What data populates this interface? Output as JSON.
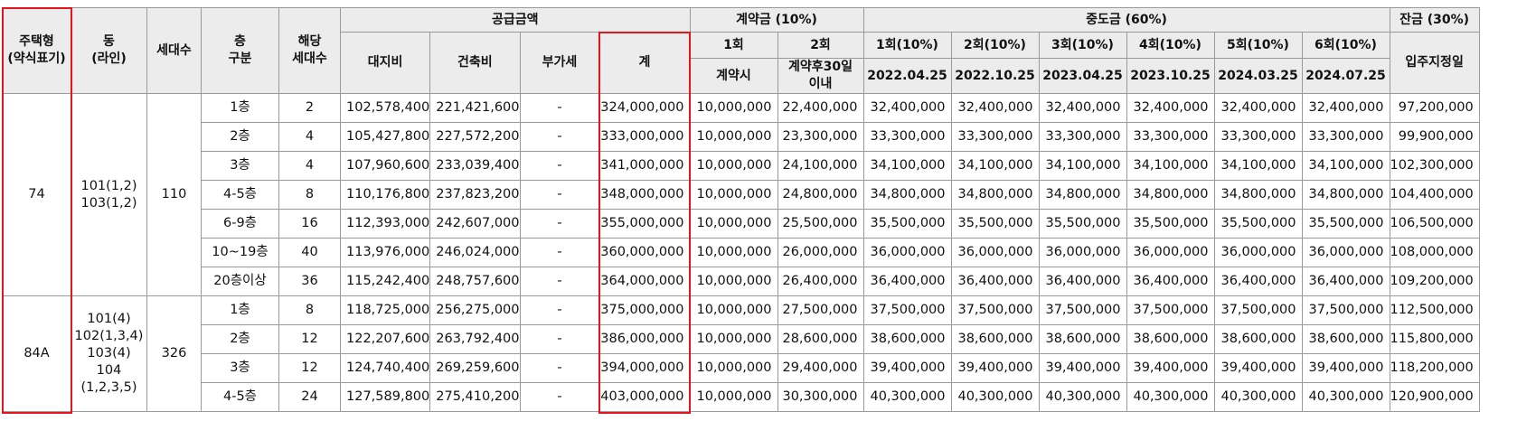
{
  "headers": {
    "type": "주택형\n(약식표기)",
    "dong": "동\n(라인)",
    "households": "세대수",
    "floor": "층\n구분",
    "floor_households": "해당\n세대수",
    "supply_price": "공급금액",
    "land": "대지비",
    "building": "건축비",
    "vat": "부가세",
    "total": "계",
    "contract": "계약금 (10%)",
    "contract_1": "1회",
    "contract_1_sub": "계약시",
    "contract_2": "2회",
    "contract_2_sub": "계약후30일\n이내",
    "middle": "중도금 (60%)",
    "installments": [
      {
        "label": "1회(10%)",
        "date": "2022.04.25"
      },
      {
        "label": "2회(10%)",
        "date": "2022.10.25"
      },
      {
        "label": "3회(10%)",
        "date": "2023.04.25"
      },
      {
        "label": "4회(10%)",
        "date": "2023.10.25"
      },
      {
        "label": "5회(10%)",
        "date": "2024.03.25"
      },
      {
        "label": "6회(10%)",
        "date": "2024.07.25"
      }
    ],
    "balance": "잔금 (30%)",
    "balance_sub": "입주지정일"
  },
  "groups": [
    {
      "type": "74",
      "dong": "101(1,2)\n103(1,2)",
      "households": "110",
      "rows": [
        {
          "floor": "1층",
          "count": "2",
          "land": "102,578,400",
          "building": "221,421,600",
          "vat": "-",
          "total": "324,000,000",
          "c1": "10,000,000",
          "c2": "22,400,000",
          "mid": "32,400,000",
          "balance": "97,200,000"
        },
        {
          "floor": "2층",
          "count": "4",
          "land": "105,427,800",
          "building": "227,572,200",
          "vat": "-",
          "total": "333,000,000",
          "c1": "10,000,000",
          "c2": "23,300,000",
          "mid": "33,300,000",
          "balance": "99,900,000"
        },
        {
          "floor": "3층",
          "count": "4",
          "land": "107,960,600",
          "building": "233,039,400",
          "vat": "-",
          "total": "341,000,000",
          "c1": "10,000,000",
          "c2": "24,100,000",
          "mid": "34,100,000",
          "balance": "102,300,000"
        },
        {
          "floor": "4-5층",
          "count": "8",
          "land": "110,176,800",
          "building": "237,823,200",
          "vat": "-",
          "total": "348,000,000",
          "c1": "10,000,000",
          "c2": "24,800,000",
          "mid": "34,800,000",
          "balance": "104,400,000"
        },
        {
          "floor": "6-9층",
          "count": "16",
          "land": "112,393,000",
          "building": "242,607,000",
          "vat": "-",
          "total": "355,000,000",
          "c1": "10,000,000",
          "c2": "25,500,000",
          "mid": "35,500,000",
          "balance": "106,500,000"
        },
        {
          "floor": "10~19층",
          "count": "40",
          "land": "113,976,000",
          "building": "246,024,000",
          "vat": "-",
          "total": "360,000,000",
          "c1": "10,000,000",
          "c2": "26,000,000",
          "mid": "36,000,000",
          "balance": "108,000,000"
        },
        {
          "floor": "20층이상",
          "count": "36",
          "land": "115,242,400",
          "building": "248,757,600",
          "vat": "-",
          "total": "364,000,000",
          "c1": "10,000,000",
          "c2": "26,400,000",
          "mid": "36,400,000",
          "balance": "109,200,000"
        }
      ]
    },
    {
      "type": "84A",
      "dong": "101(4)\n102(1,3,4)\n103(4)\n104\n(1,2,3,5)",
      "households": "326",
      "rows": [
        {
          "floor": "1층",
          "count": "8",
          "land": "118,725,000",
          "building": "256,275,000",
          "vat": "-",
          "total": "375,000,000",
          "c1": "10,000,000",
          "c2": "27,500,000",
          "mid": "37,500,000",
          "balance": "112,500,000"
        },
        {
          "floor": "2층",
          "count": "12",
          "land": "122,207,600",
          "building": "263,792,400",
          "vat": "-",
          "total": "386,000,000",
          "c1": "10,000,000",
          "c2": "28,600,000",
          "mid": "38,600,000",
          "balance": "115,800,000"
        },
        {
          "floor": "3층",
          "count": "12",
          "land": "124,740,400",
          "building": "269,259,600",
          "vat": "-",
          "total": "394,000,000",
          "c1": "10,000,000",
          "c2": "29,400,000",
          "mid": "39,400,000",
          "balance": "118,200,000"
        },
        {
          "floor": "4-5층",
          "count": "24",
          "land": "127,589,800",
          "building": "275,410,200",
          "vat": "-",
          "total": "403,000,000",
          "c1": "10,000,000",
          "c2": "30,300,000",
          "mid": "40,300,000",
          "balance": "120,900,000"
        }
      ]
    }
  ],
  "highlight_color": "#e8141b"
}
